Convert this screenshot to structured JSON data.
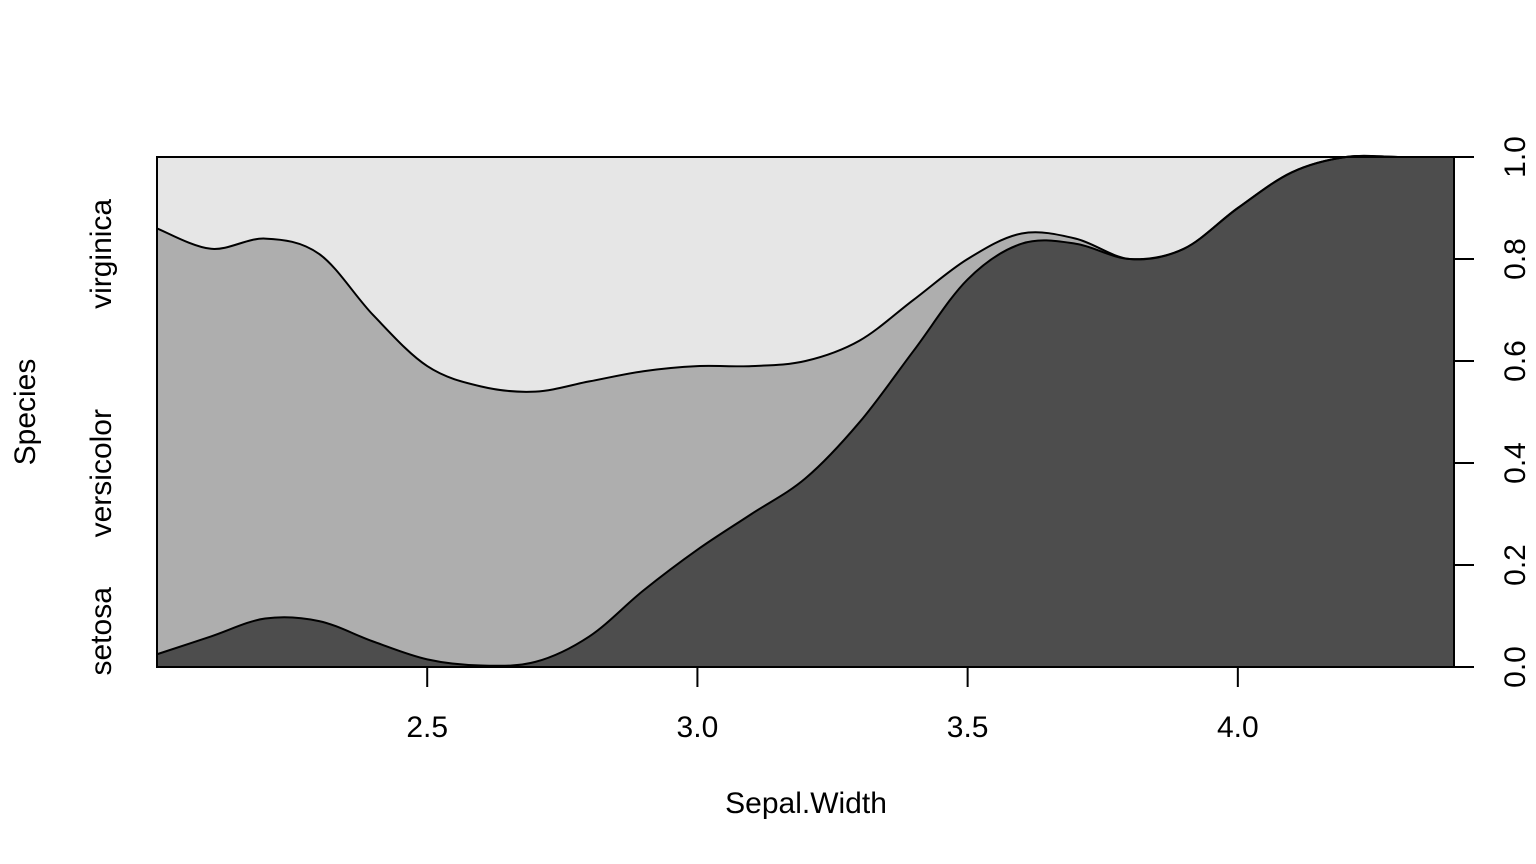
{
  "chart_data": {
    "type": "area",
    "subtype": "conditional-density (spineplot-style) stacked proportions",
    "title": "",
    "xlabel": "Sepal.Width",
    "ylabel": "Species",
    "xlim": [
      2.0,
      4.4
    ],
    "ylim": [
      0.0,
      1.0
    ],
    "x_ticks": [
      "2.5",
      "3.0",
      "3.5",
      "4.0"
    ],
    "y_ticks_right": [
      "0.0",
      "0.2",
      "0.4",
      "0.6",
      "0.8",
      "1.0"
    ],
    "categories": [
      "setosa",
      "versicolor",
      "virginica"
    ],
    "category_label_positions": [
      0.07,
      0.38,
      0.81
    ],
    "colors": {
      "setosa": "#4d4d4d",
      "versicolor": "#aeaeae",
      "virginica": "#e6e6e6"
    },
    "x": [
      2.0,
      2.1,
      2.2,
      2.3,
      2.4,
      2.5,
      2.6,
      2.7,
      2.8,
      2.9,
      3.0,
      3.1,
      3.2,
      3.3,
      3.4,
      3.5,
      3.6,
      3.7,
      3.8,
      3.9,
      4.0,
      4.1,
      4.2,
      4.3,
      4.4
    ],
    "series": [
      {
        "name": "versicolor",
        "cumulative_upper": [
          0.86,
          0.82,
          0.84,
          0.81,
          0.69,
          0.59,
          0.55,
          0.54,
          0.56,
          0.58,
          0.59,
          0.59,
          0.6,
          0.64,
          0.72,
          0.8,
          0.85,
          0.84,
          0.8,
          0.82,
          0.9,
          0.97,
          1.0,
          1.0,
          1.0
        ]
      },
      {
        "name": "setosa",
        "cumulative_upper": [
          0.025,
          0.06,
          0.095,
          0.09,
          0.05,
          0.015,
          0.003,
          0.01,
          0.06,
          0.15,
          0.23,
          0.3,
          0.37,
          0.48,
          0.62,
          0.76,
          0.83,
          0.83,
          0.8,
          0.82,
          0.9,
          0.97,
          1.0,
          1.0,
          1.0
        ]
      }
    ],
    "grid": false,
    "legend": "none"
  }
}
